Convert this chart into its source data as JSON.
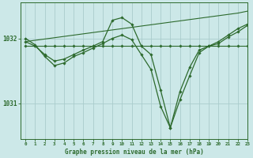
{
  "bg_color": "#cce8e8",
  "grid_color": "#aacccc",
  "line_color": "#2d6a2d",
  "title": "Graphe pression niveau de la mer (hPa)",
  "ylabel_ticks": [
    1031,
    1032
  ],
  "xlim": [
    -0.5,
    23
  ],
  "ylim": [
    1030.45,
    1032.55
  ],
  "hours": [
    0,
    1,
    2,
    3,
    4,
    5,
    6,
    7,
    8,
    9,
    10,
    11,
    12,
    13,
    14,
    15,
    16,
    17,
    18,
    19,
    20,
    21,
    22,
    23
  ],
  "line_flat": [
    1031.88,
    1031.88,
    1031.88,
    1031.88,
    1031.88,
    1031.88,
    1031.88,
    1031.88,
    1031.88,
    1031.88,
    1031.88,
    1031.88,
    1031.88,
    1031.88,
    1031.88,
    1031.88,
    1031.88,
    1031.88,
    1031.88,
    1031.88,
    1031.88,
    1031.88,
    1031.88,
    1031.88
  ],
  "line_diag": [
    1031.95,
    1031.97,
    1031.99,
    1032.01,
    1032.03,
    1032.05,
    1032.07,
    1032.09,
    1032.11,
    1032.13,
    1032.15,
    1032.17,
    1032.19,
    1032.21,
    1032.23,
    1032.25,
    1032.27,
    1032.29,
    1032.31,
    1032.33,
    1032.35,
    1032.37,
    1032.39,
    1032.42
  ],
  "line_hump": [
    1031.95,
    1031.88,
    1031.75,
    1031.65,
    1031.68,
    1031.75,
    1031.82,
    1031.88,
    1031.95,
    1032.28,
    1032.32,
    1032.22,
    1031.88,
    1031.75,
    1031.2,
    1030.62,
    1031.18,
    1031.55,
    1031.82,
    1031.88,
    1031.95,
    1032.05,
    1032.15,
    1032.22
  ],
  "line_main": [
    1032.0,
    1031.9,
    1031.72,
    1031.58,
    1031.62,
    1031.72,
    1031.78,
    1031.85,
    1031.92,
    1032.0,
    1032.05,
    1031.98,
    1031.75,
    1031.52,
    1030.95,
    1030.62,
    1031.05,
    1031.42,
    1031.78,
    1031.88,
    1031.92,
    1032.02,
    1032.1,
    1032.2
  ]
}
